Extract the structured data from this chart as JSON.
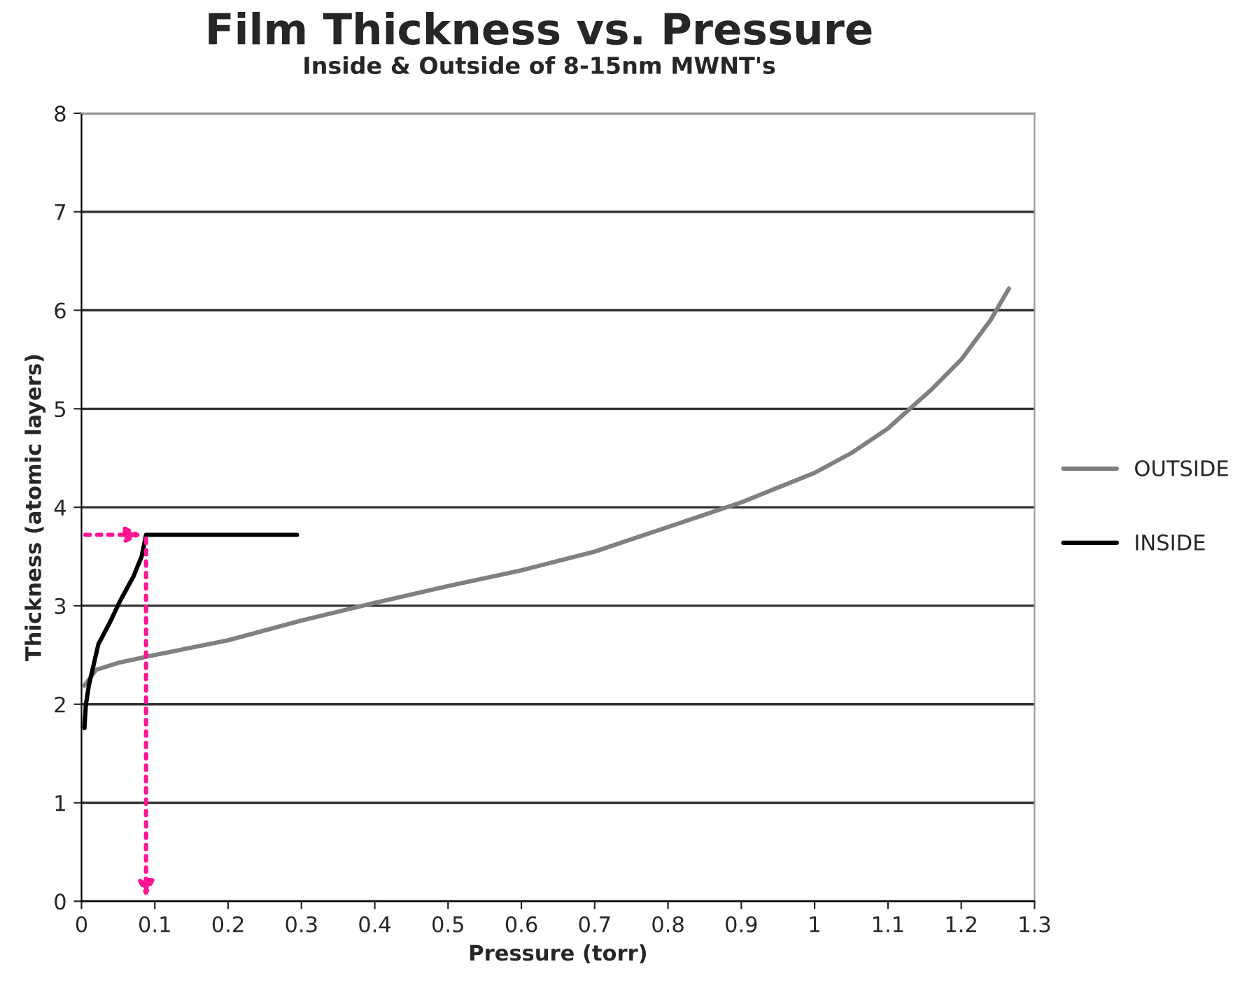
{
  "chart_data": {
    "type": "line",
    "title": "Film Thickness vs. Pressure",
    "subtitle": "Inside & Outside of 8-15nm MWNT's",
    "xlabel": "Pressure (torr)",
    "ylabel": "Thickness (atomic layers)",
    "xlim": [
      0,
      1.3
    ],
    "xticks": [
      0,
      0.1,
      0.2,
      0.3,
      0.4,
      0.5,
      0.6,
      0.7,
      0.8,
      0.9,
      1,
      1.1,
      1.2,
      1.3
    ],
    "ylim": [
      0,
      8
    ],
    "yticks": [
      0,
      1,
      2,
      3,
      4,
      5,
      6,
      7,
      8
    ],
    "grid": "y",
    "legend": "right",
    "marker": "none",
    "line_style": "solid",
    "series": [
      {
        "name": "OUTSIDE",
        "color": "#808080",
        "x": [
          0.004,
          0.02,
          0.05,
          0.1,
          0.2,
          0.3,
          0.4,
          0.5,
          0.6,
          0.7,
          0.8,
          0.88,
          0.9,
          1.0,
          1.05,
          1.1,
          1.13,
          1.16,
          1.2,
          1.24,
          1.265
        ],
        "values": [
          2.19,
          2.35,
          2.42,
          2.5,
          2.65,
          2.85,
          3.03,
          3.2,
          3.36,
          3.55,
          3.8,
          4.0,
          4.05,
          4.35,
          4.55,
          4.8,
          5.0,
          5.2,
          5.5,
          5.9,
          6.22
        ]
      },
      {
        "name": "INSIDE",
        "color": "#000000",
        "x": [
          0.004,
          0.006,
          0.01,
          0.023,
          0.04,
          0.052,
          0.071,
          0.082,
          0.088,
          0.294
        ],
        "values": [
          1.76,
          2.0,
          2.19,
          2.61,
          2.85,
          3.04,
          3.3,
          3.5,
          3.72,
          3.72
        ]
      }
    ]
  }
}
